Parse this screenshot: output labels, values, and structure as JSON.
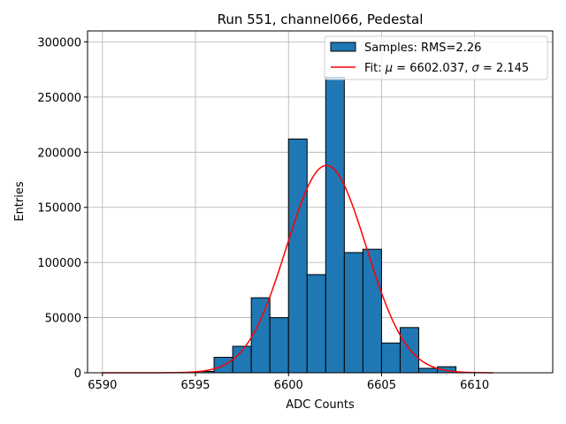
{
  "chart_data": {
    "type": "bar",
    "title": "Run 551, channel066, Pedestal",
    "xlabel": "ADC Counts",
    "ylabel": "Entries",
    "xlim": [
      6589.2,
      6614.2
    ],
    "ylim": [
      0,
      310000
    ],
    "xticks": [
      6590,
      6595,
      6600,
      6605,
      6610
    ],
    "xtick_labels": [
      "6590",
      "6595",
      "6600",
      "6605",
      "6610"
    ],
    "yticks": [
      0,
      50000,
      100000,
      150000,
      200000,
      250000,
      300000
    ],
    "ytick_labels": [
      "0",
      "50000",
      "100000",
      "150000",
      "200000",
      "250000",
      "300000"
    ],
    "grid": true,
    "legend_position": "top-right",
    "histogram": {
      "name": "Samples: RMS=2.26",
      "color": "#1f77b4",
      "edge_color": "#000000",
      "bin_width": 1,
      "bin_edges_start": [
        6594,
        6595,
        6596,
        6597,
        6598,
        6599,
        6600,
        6601,
        6602,
        6603,
        6604,
        6605,
        6606,
        6607,
        6608
      ],
      "values": [
        400,
        1200,
        14000,
        24000,
        68000,
        50000,
        212000,
        89000,
        268000,
        109000,
        112000,
        27000,
        41000,
        4000,
        5500
      ]
    },
    "fit": {
      "name": "Fit: μ = 6602.037, σ = 2.145",
      "label_prefix": "Fit: ",
      "mu_symbol": "μ",
      "mu_text": " = 6602.037, ",
      "sigma_symbol": "σ",
      "sigma_text": " = 2.145",
      "color": "#ff0000",
      "mu": 6602.037,
      "sigma": 2.145,
      "amplitude": 188000,
      "x_range": [
        6590,
        6611
      ]
    }
  }
}
